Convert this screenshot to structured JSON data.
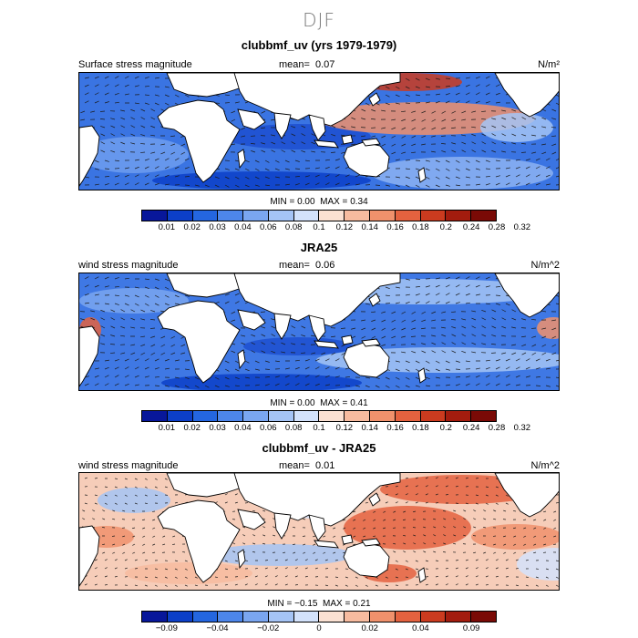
{
  "figure_title": "DJF",
  "colors": {
    "continent": "#ffffff",
    "coast": "#000000",
    "arrow": "#1a1a1a"
  },
  "colorbar_colors": [
    "#08179a",
    "#0c3fc8",
    "#2466e0",
    "#4d86ea",
    "#7aa6f0",
    "#a5c4f5",
    "#d3e2fb",
    "#fbe1d2",
    "#f7bb9f",
    "#f0916c",
    "#e4623f",
    "#cb3b1f",
    "#a31c0e",
    "#7a0a06"
  ],
  "panels": [
    {
      "title": "clubbmf_uv (yrs 1979-1979)",
      "label": "Surface stress magnitude",
      "mean_label": "mean=",
      "mean_value": "0.07",
      "units": "N/m²",
      "min_label": "MIN =",
      "min_value": "0.00",
      "max_label": "MAX =",
      "max_value": "0.34",
      "ticks": [
        "0.01",
        "0.02",
        "0.03",
        "0.04",
        "0.06",
        "0.08",
        "0.1",
        "0.12",
        "0.14",
        "0.16",
        "0.18",
        "0.2",
        "0.24",
        "0.28",
        "0.32"
      ]
    },
    {
      "title": "JRA25",
      "label": "wind stress magnitude",
      "mean_label": "mean=",
      "mean_value": "0.06",
      "units": "N/m^2",
      "min_label": "MIN =",
      "min_value": "0.00",
      "max_label": "MAX =",
      "max_value": "0.41",
      "ticks": [
        "0.01",
        "0.02",
        "0.03",
        "0.04",
        "0.06",
        "0.08",
        "0.1",
        "0.12",
        "0.14",
        "0.16",
        "0.18",
        "0.2",
        "0.24",
        "0.28",
        "0.32"
      ]
    },
    {
      "title": "clubbmf_uv - JRA25",
      "label": "wind stress magnitude",
      "mean_label": "mean=",
      "mean_value": "0.01",
      "units": "N/m^2",
      "min_label": "MIN =",
      "min_value": "−0.15",
      "max_label": "MAX =",
      "max_value": "0.21",
      "ticks": [
        "−0.09",
        "",
        "−0.04",
        "",
        "−0.02",
        "",
        "0",
        "",
        "0.02",
        "",
        "0.04",
        "",
        "0.09",
        ""
      ]
    }
  ]
}
